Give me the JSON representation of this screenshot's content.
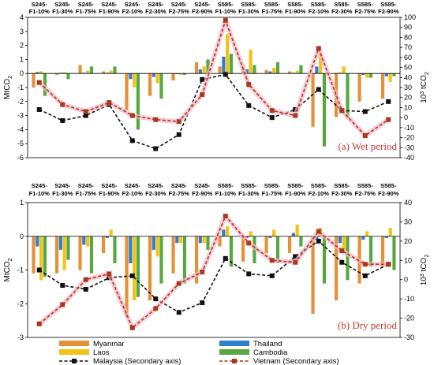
{
  "colors": {
    "myanmar": "#e5913a",
    "laos": "#f2c417",
    "thailand": "#2f7fd0",
    "cambodia": "#58a841",
    "malaysia": "#111111",
    "vietnam": "#a9381e",
    "highlight": "#f4b6c6"
  },
  "legend": {
    "myanmar": "Myanmar",
    "thailand": "Thailand",
    "laos": "Laos",
    "cambodia": "Cambodia",
    "malaysia": "Malaysia (Secondary axis)",
    "vietnam": "Vietnam (Secondary axis)"
  },
  "chart_data": [
    {
      "type": "bar",
      "panel_label": "(a) Wet period",
      "ylabel": "MtCO",
      "ylabel_sub": "2",
      "y2label": "10",
      "y2label_sup": "3",
      "y2label_unit": " tCO",
      "y2label_sub": "2",
      "ylim": [
        -6,
        4
      ],
      "y2lim": [
        -40,
        100
      ],
      "yticks": [
        "-6",
        "-5",
        "-4",
        "-3",
        "-2",
        "-1",
        "0",
        "1",
        "2",
        "3",
        "4"
      ],
      "y2ticks": [
        "-40",
        "-30",
        "-20",
        "-10",
        "0",
        "10",
        "20",
        "30",
        "40",
        "50",
        "60",
        "70",
        "80",
        "90",
        "100"
      ],
      "categories": [
        [
          "S245-",
          "F1-10%"
        ],
        [
          "S245-",
          "F1-30%"
        ],
        [
          "S245-",
          "F1-75%"
        ],
        [
          "S245-",
          "F1-90%"
        ],
        [
          "S245-",
          "F2-10%"
        ],
        [
          "S245-",
          "F2-30%"
        ],
        [
          "S245-",
          "F2-75%"
        ],
        [
          "S245-",
          "F2-90%"
        ],
        [
          "S585-",
          "F1-10%"
        ],
        [
          "S585-",
          "F1-30%"
        ],
        [
          "S585-",
          "F1-75%"
        ],
        [
          "S585-",
          "F1-90%"
        ],
        [
          "S585-",
          "F2-10%"
        ],
        [
          "S585-",
          "F2-30%"
        ],
        [
          "S585-",
          "F2-75%"
        ],
        [
          "S585-",
          "F2-90%"
        ]
      ],
      "series": [
        {
          "name": "Myanmar",
          "color_key": "myanmar",
          "values": [
            -1.0,
            -0.1,
            0.6,
            0.15,
            -2.6,
            -1.6,
            -0.5,
            0.8,
            0.5,
            0.6,
            0.25,
            0.15,
            -3.8,
            -3.1,
            -2.0,
            -1.8
          ]
        },
        {
          "name": "Thailand",
          "color_key": "thailand",
          "values": [
            0.1,
            0.05,
            0.05,
            0.05,
            -0.4,
            -0.25,
            -0.05,
            0.3,
            1.2,
            0.3,
            0.15,
            0.05,
            0.5,
            0.05,
            -0.1,
            -0.2
          ]
        },
        {
          "name": "Laos",
          "color_key": "laos",
          "values": [
            0.15,
            0.1,
            0.2,
            0.2,
            -1.0,
            -0.7,
            -0.1,
            0.5,
            2.8,
            1.7,
            0.4,
            0.2,
            1.5,
            0.5,
            -0.3,
            -0.6
          ]
        },
        {
          "name": "Cambodia",
          "color_key": "cambodia",
          "values": [
            -1.6,
            -0.4,
            0.5,
            0.5,
            -4.0,
            -1.8,
            -0.1,
            1.0,
            1.4,
            0.6,
            0.8,
            0.6,
            -5.2,
            -3.2,
            -0.3,
            -0.2
          ]
        }
      ],
      "lines": [
        {
          "name": "Malaysia",
          "color_key": "malaysia",
          "marker": "square",
          "values": [
            8,
            -3,
            2,
            13,
            -23,
            -31,
            -17,
            38,
            43,
            12,
            0,
            8,
            28,
            7,
            6,
            16
          ]
        },
        {
          "name": "Vietnam",
          "color_key": "vietnam",
          "marker": "square",
          "values": [
            35,
            13,
            6,
            15,
            2,
            -2,
            -4,
            23,
            97,
            33,
            7,
            2,
            69,
            7,
            -18,
            -2
          ]
        }
      ],
      "highlight": "Vietnam"
    },
    {
      "type": "bar",
      "panel_label": "(b) Dry period",
      "ylabel": "MtCO",
      "ylabel_sub": "2",
      "y2label": "10",
      "y2label_sup": "3",
      "y2label_unit": " tCO",
      "y2label_sub": "2",
      "ylim": [
        -3,
        1
      ],
      "y2lim": [
        -30,
        40
      ],
      "yticks": [
        "-3",
        "-2",
        "-1",
        "0",
        "1"
      ],
      "y2ticks": [
        "-30",
        "-20",
        "-10",
        "0",
        "10",
        "20",
        "30",
        "40"
      ],
      "categories": [
        [
          "S245-",
          "F1-10%"
        ],
        [
          "S245-",
          "F1-30%"
        ],
        [
          "S245-",
          "F1-75%"
        ],
        [
          "S245-",
          "F1-90%"
        ],
        [
          "S245-",
          "F2-10%"
        ],
        [
          "S245-",
          "F2-30%"
        ],
        [
          "S245-",
          "F2-75%"
        ],
        [
          "S245-",
          "F2-90%"
        ],
        [
          "S585-",
          "F1-10%"
        ],
        [
          "S585-",
          "F1-30%"
        ],
        [
          "S585-",
          "F1-75%"
        ],
        [
          "S585-",
          "F1-90%"
        ],
        [
          "S585-",
          "F2-10%"
        ],
        [
          "S585-",
          "F2-30%"
        ],
        [
          "S585-",
          "F2-75%"
        ],
        [
          "S585-",
          "F2-90%"
        ]
      ],
      "series": [
        {
          "name": "Myanmar",
          "color_key": "myanmar",
          "values": [
            -1.1,
            -1.1,
            -1.0,
            -0.5,
            -2.4,
            -1.9,
            -1.1,
            -1.4,
            -0.3,
            -0.75,
            -0.5,
            -0.5,
            -2.3,
            -1.9,
            -1.4,
            -0.9
          ]
        },
        {
          "name": "Thailand",
          "color_key": "thailand",
          "values": [
            -0.3,
            -0.4,
            -0.25,
            -0.05,
            -0.8,
            -0.4,
            -0.2,
            -0.2,
            0.2,
            -0.05,
            -0.05,
            0.1,
            -0.1,
            -0.2,
            -0.1,
            -0.05
          ]
        },
        {
          "name": "Laos",
          "color_key": "laos",
          "values": [
            -1.3,
            -1.0,
            -0.3,
            0.2,
            -1.9,
            -0.6,
            -0.2,
            -0.2,
            0.3,
            0.15,
            0.2,
            0.35,
            0.25,
            -0.4,
            0.15,
            0.25
          ]
        },
        {
          "name": "Cambodia",
          "color_key": "cambodia",
          "values": [
            -1.2,
            -0.7,
            -1.1,
            -0.8,
            -1.8,
            -1.4,
            -1.4,
            -0.4,
            -0.9,
            -0.8,
            -0.8,
            -0.3,
            -1.4,
            -1.3,
            -0.9,
            -1.0
          ]
        }
      ],
      "lines": [
        {
          "name": "Malaysia",
          "color_key": "malaysia",
          "marker": "square",
          "values": [
            5,
            -3,
            -5,
            1,
            2,
            -10,
            -17,
            -12,
            11,
            3,
            2,
            12,
            20,
            9,
            2,
            8
          ]
        },
        {
          "name": "Vietnam",
          "color_key": "vietnam",
          "marker": "square",
          "values": [
            -23,
            -13,
            0,
            3,
            -25,
            -15,
            -2,
            4,
            33,
            19,
            10,
            9,
            25,
            15,
            8,
            8
          ]
        }
      ],
      "highlight": "Vietnam"
    }
  ]
}
